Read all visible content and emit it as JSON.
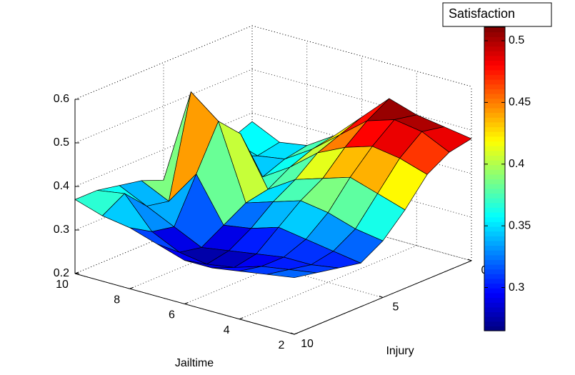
{
  "chart_data": {
    "type": "surface",
    "x_label": "Jailtime",
    "y_label": "Injury",
    "colorbar_title": "Satisfaction",
    "x": [
      2,
      3,
      4,
      5,
      6,
      7,
      8,
      9,
      10
    ],
    "y": [
      0,
      1.25,
      2.5,
      3.75,
      5,
      6.25,
      7.5,
      8.75,
      10
    ],
    "z": [
      [
        0.48,
        0.47,
        0.44,
        0.38,
        0.33,
        0.3,
        0.31,
        0.32,
        0.33
      ],
      [
        0.49,
        0.5,
        0.46,
        0.4,
        0.34,
        0.31,
        0.3,
        0.31,
        0.32
      ],
      [
        0.5,
        0.51,
        0.47,
        0.42,
        0.36,
        0.32,
        0.3,
        0.3,
        0.31
      ],
      [
        0.52,
        0.49,
        0.45,
        0.4,
        0.37,
        0.33,
        0.29,
        0.28,
        0.3
      ],
      [
        0.46,
        0.44,
        0.42,
        0.38,
        0.35,
        0.31,
        0.28,
        0.27,
        0.3
      ],
      [
        0.4,
        0.39,
        0.37,
        0.34,
        0.33,
        0.3,
        0.27,
        0.28,
        0.32
      ],
      [
        0.36,
        0.35,
        0.33,
        0.45,
        0.5,
        0.4,
        0.3,
        0.31,
        0.34
      ],
      [
        0.35,
        0.34,
        0.36,
        0.33,
        0.55,
        0.32,
        0.33,
        0.38,
        0.35
      ],
      [
        0.38,
        0.36,
        0.35,
        0.34,
        0.33,
        0.35,
        0.36,
        0.37,
        0.37
      ]
    ],
    "xlim": [
      2,
      10
    ],
    "xticks": [
      2,
      4,
      6,
      8,
      10
    ],
    "ylim": [
      0,
      10
    ],
    "yticks": [
      0,
      5,
      10
    ],
    "zlim": [
      0.2,
      0.6
    ],
    "zticks": [
      0.2,
      0.3,
      0.4,
      0.5,
      0.6
    ],
    "clim": [
      0.265,
      0.511
    ],
    "cticks": [
      0.3,
      0.35,
      0.4,
      0.45,
      0.5
    ],
    "colormap": "jet",
    "grid": true
  }
}
